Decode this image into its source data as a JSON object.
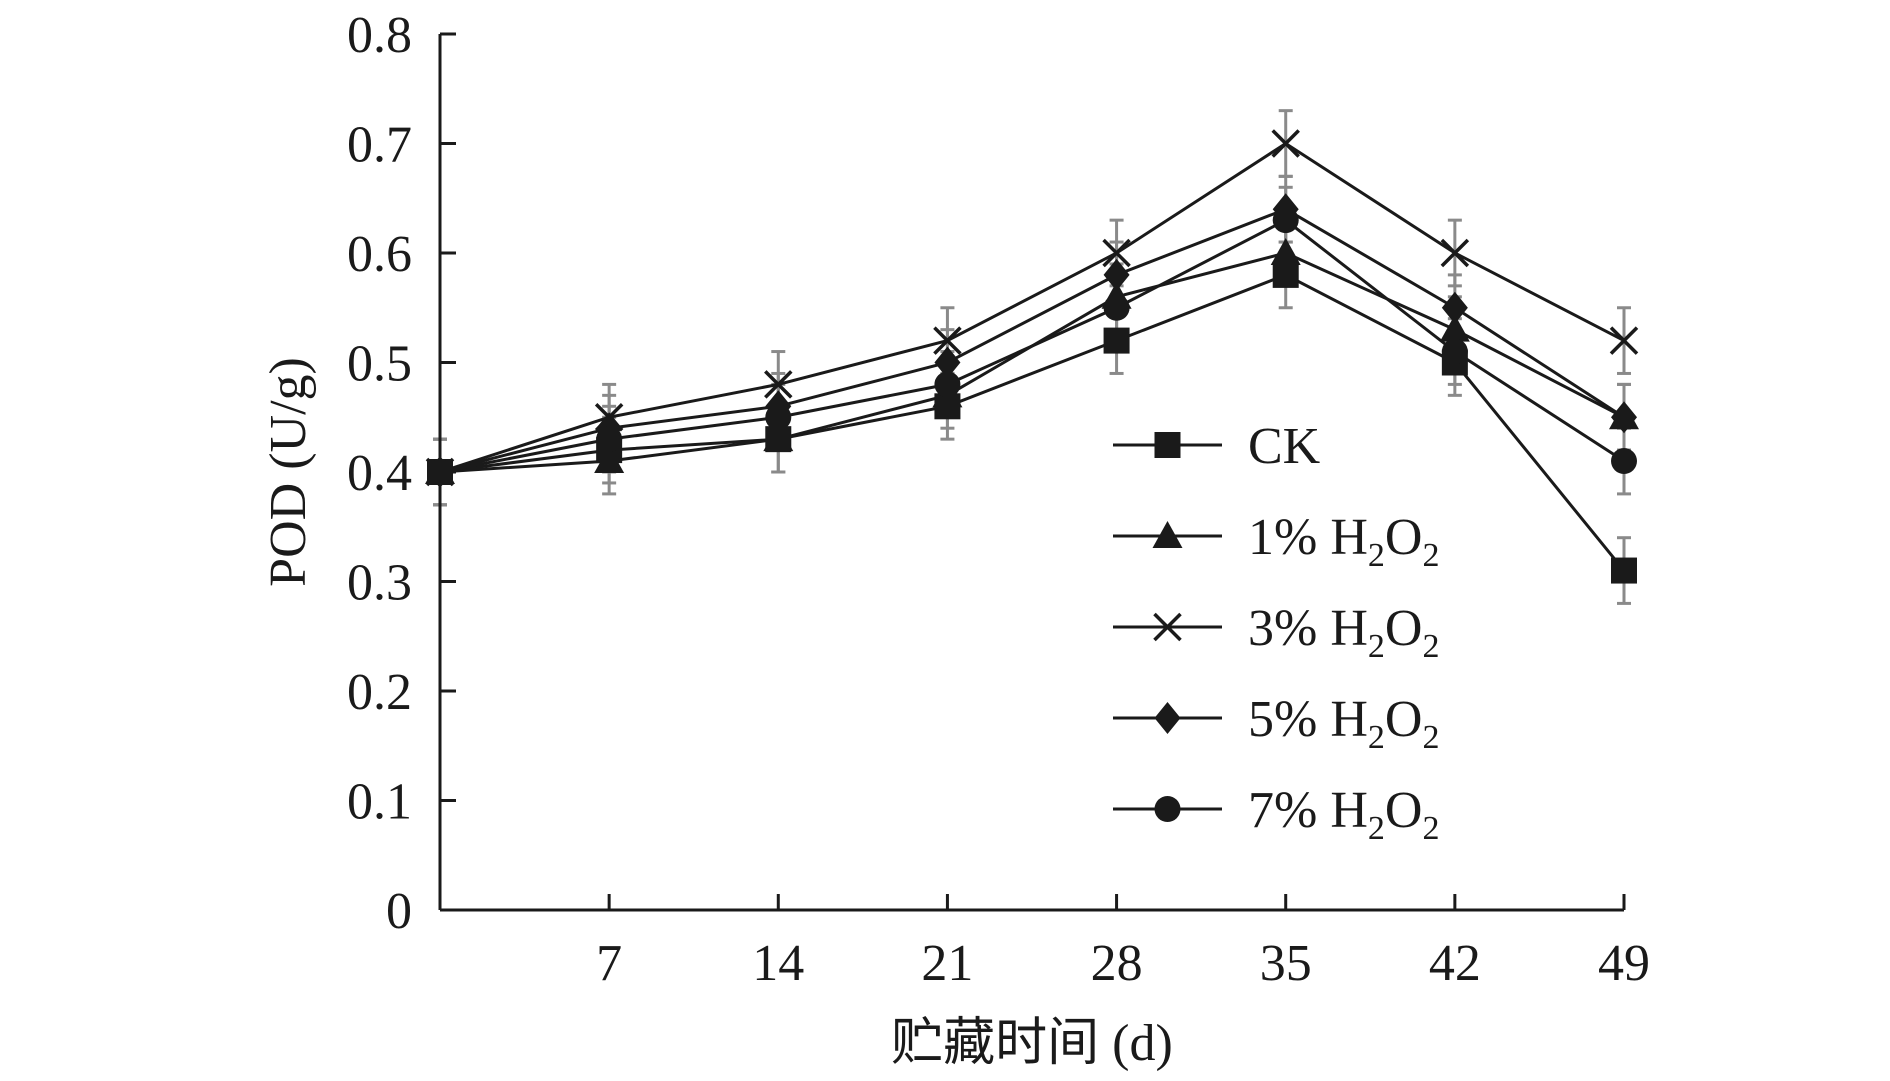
{
  "chart_data": {
    "type": "line",
    "x": [
      0,
      7,
      14,
      21,
      28,
      35,
      42,
      49
    ],
    "xticks": [
      "7",
      "14",
      "21",
      "28",
      "35",
      "42",
      "49"
    ],
    "xtick_values": [
      7,
      14,
      21,
      28,
      35,
      42,
      49
    ],
    "yticks": [
      "0",
      "0.1",
      "0.2",
      "0.3",
      "0.4",
      "0.5",
      "0.6",
      "0.7",
      "0.8"
    ],
    "ytick_values": [
      0,
      0.1,
      0.2,
      0.3,
      0.4,
      0.5,
      0.6,
      0.7,
      0.8
    ],
    "xlim": [
      0,
      49
    ],
    "ylim": [
      0,
      0.8
    ],
    "xlabel": "贮藏时间 (d)",
    "ylabel": "POD (U/g)",
    "legend_position": "center-right",
    "series": [
      {
        "name": "CK",
        "legend_parts": [
          "CK"
        ],
        "marker": "square",
        "values": [
          0.4,
          0.42,
          0.43,
          0.46,
          0.52,
          0.58,
          0.5,
          0.31
        ],
        "errors": [
          0.03,
          0.03,
          0.03,
          0.03,
          0.03,
          0.03,
          0.03,
          0.03
        ]
      },
      {
        "name": "1% H2O2",
        "legend_parts": [
          "1% H",
          "2",
          "O",
          "2"
        ],
        "marker": "triangle",
        "values": [
          0.4,
          0.41,
          0.43,
          0.47,
          0.56,
          0.6,
          0.53,
          0.45
        ],
        "errors": [
          0.03,
          0.03,
          0.03,
          0.03,
          0.03,
          0.03,
          0.03,
          0.03
        ]
      },
      {
        "name": "3% H2O2",
        "legend_parts": [
          "3% H",
          "2",
          "O",
          "2"
        ],
        "marker": "x",
        "values": [
          0.4,
          0.45,
          0.48,
          0.52,
          0.6,
          0.7,
          0.6,
          0.52
        ],
        "errors": [
          0.03,
          0.03,
          0.03,
          0.03,
          0.03,
          0.03,
          0.03,
          0.03
        ]
      },
      {
        "name": "5% H2O2",
        "legend_parts": [
          "5% H",
          "2",
          "O",
          "2"
        ],
        "marker": "diamond",
        "values": [
          0.4,
          0.44,
          0.46,
          0.5,
          0.58,
          0.64,
          0.55,
          0.45
        ],
        "errors": [
          0.03,
          0.03,
          0.03,
          0.03,
          0.03,
          0.03,
          0.03,
          0.03
        ]
      },
      {
        "name": "7% H2O2",
        "legend_parts": [
          "7% H",
          "2",
          "O",
          "2"
        ],
        "marker": "circle",
        "values": [
          0.4,
          0.43,
          0.45,
          0.48,
          0.55,
          0.63,
          0.51,
          0.41
        ],
        "errors": [
          0.03,
          0.03,
          0.03,
          0.03,
          0.03,
          0.03,
          0.03,
          0.03
        ]
      }
    ]
  }
}
